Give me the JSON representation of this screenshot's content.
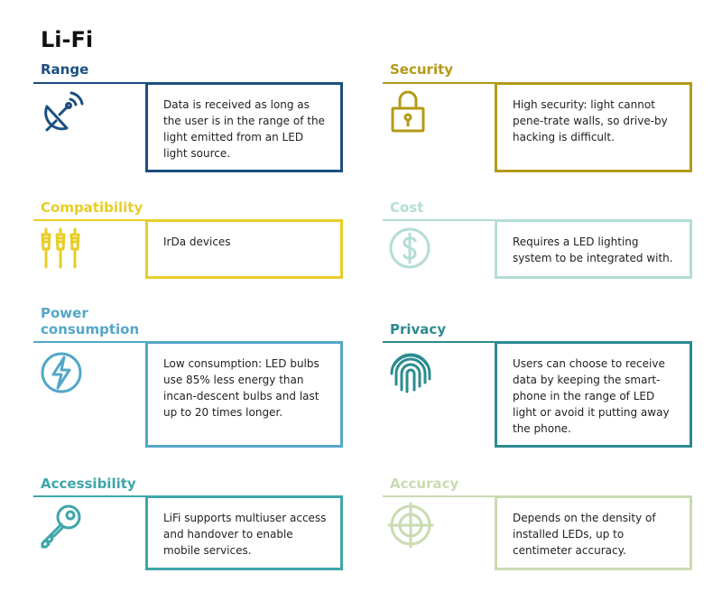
{
  "page_title": "Li-Fi",
  "colors": {
    "range": "#1b4f7f",
    "security": "#b39a16",
    "compatibility": "#e8cd27",
    "cost": "#b4ddd5",
    "power": "#53a7c8",
    "privacy": "#2c8b91",
    "accessibility": "#3ea6a9",
    "accuracy": "#cadbb2"
  },
  "cards": {
    "range": {
      "title": "Range",
      "icon": "satellite-dish-icon",
      "text": "Data is received as long as the user is in the range of the light emitted from an LED light source."
    },
    "security": {
      "title": "Security",
      "icon": "padlock-icon",
      "text": "High security: light cannot pene-trate walls, so drive-by hacking is difficult."
    },
    "compatibility": {
      "title": "Compatibility",
      "icon": "connectors-icon",
      "text": "IrDa devices"
    },
    "cost": {
      "title": "Cost",
      "icon": "dollar-icon",
      "text": "Requires a LED lighting system to be integrated with."
    },
    "power": {
      "title_line1": "Power",
      "title_line2": "consumption",
      "icon": "lightning-icon",
      "text": "Low consumption: LED bulbs use 85% less energy than incan-descent bulbs and last up to 20 times longer."
    },
    "privacy": {
      "title": "Privacy",
      "icon": "fingerprint-icon",
      "text": "Users can choose to receive data by keeping the smart-phone in the range of LED light or avoid it putting away the phone."
    },
    "accessibility": {
      "title": "Accessibility",
      "icon": "key-icon",
      "text": "LiFi supports multiuser access and handover to enable mobile services."
    },
    "accuracy": {
      "title": "Accuracy",
      "icon": "crosshair-icon",
      "text": "Depends on the density of installed LEDs, up to centimeter accuracy."
    }
  }
}
